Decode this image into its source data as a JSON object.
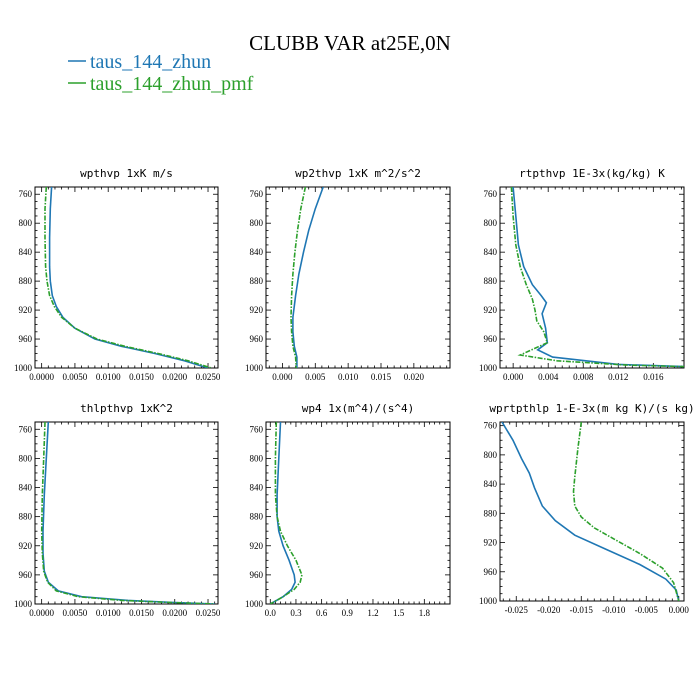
{
  "figure": {
    "title": "CLUBB VAR at25E,0N",
    "legend": [
      {
        "label": "taus_144_zhun",
        "color": "#1f77b4"
      },
      {
        "label": "taus_144_zhun_pmf",
        "color": "#2ca02c"
      }
    ]
  },
  "chart_data": [
    {
      "type": "line",
      "title": "wpthvp  1xK m/s",
      "xlim": [
        -0.001,
        0.0265
      ],
      "ylim": [
        1000,
        750
      ],
      "xticks": [
        0.0,
        0.005,
        0.01,
        0.015,
        0.02,
        0.025
      ],
      "xtick_labels": [
        "0.0000",
        "0.0050",
        "0.0100",
        "0.0150",
        "0.0200",
        "0.0250"
      ],
      "yticks": [
        760,
        800,
        840,
        880,
        920,
        960,
        1000
      ],
      "series": [
        {
          "name": "taus_144_zhun",
          "color": "#1f77b4",
          "dashed": false,
          "x": [
            0.0015,
            0.0013,
            0.0012,
            0.0012,
            0.0013,
            0.0016,
            0.0022,
            0.0032,
            0.005,
            0.008,
            0.012,
            0.017,
            0.0215,
            0.025
          ],
          "y": [
            750,
            780,
            820,
            860,
            880,
            900,
            915,
            930,
            945,
            960,
            970,
            980,
            990,
            1000
          ]
        },
        {
          "name": "taus_144_zhun_pmf",
          "color": "#2ca02c",
          "dashed": true,
          "x": [
            0.0007,
            0.0005,
            0.0005,
            0.0006,
            0.0008,
            0.0012,
            0.0019,
            0.003,
            0.005,
            0.0083,
            0.0125,
            0.0175,
            0.022,
            0.0255
          ],
          "y": [
            750,
            780,
            820,
            860,
            880,
            900,
            915,
            930,
            945,
            960,
            970,
            980,
            990,
            1000
          ]
        }
      ]
    },
    {
      "type": "line",
      "title": "wp2thvp  1xK m^2/s^2",
      "xlim": [
        -0.0025,
        0.0255
      ],
      "ylim": [
        1000,
        750
      ],
      "xticks": [
        0.0,
        0.005,
        0.01,
        0.015,
        0.02
      ],
      "xtick_labels": [
        "0.000",
        "0.005",
        "0.010",
        "0.015",
        "0.020"
      ],
      "yticks": [
        760,
        800,
        840,
        880,
        920,
        960,
        1000
      ],
      "series": [
        {
          "name": "taus_144_zhun",
          "color": "#1f77b4",
          "dashed": false,
          "x": [
            0.0062,
            0.005,
            0.004,
            0.0032,
            0.0025,
            0.002,
            0.0016,
            0.0016,
            0.0018,
            0.0022,
            0.0022
          ],
          "y": [
            750,
            780,
            810,
            840,
            870,
            900,
            930,
            950,
            970,
            985,
            1000
          ]
        },
        {
          "name": "taus_144_zhun_pmf",
          "color": "#2ca02c",
          "dashed": true,
          "x": [
            0.0035,
            0.0028,
            0.0023,
            0.0019,
            0.0016,
            0.0014,
            0.0013,
            0.0014,
            0.0016,
            0.002,
            0.0021
          ],
          "y": [
            750,
            780,
            810,
            840,
            870,
            900,
            930,
            950,
            970,
            985,
            1000
          ]
        }
      ]
    },
    {
      "type": "line",
      "title": "rtpthvp  1E-3x(kg/kg) K",
      "xlim": [
        -0.0015,
        0.0195
      ],
      "ylim": [
        1000,
        750
      ],
      "xticks": [
        0.0,
        0.004,
        0.008,
        0.012,
        0.016
      ],
      "xtick_labels": [
        "0.000",
        "0.004",
        "0.008",
        "0.012",
        "0.016"
      ],
      "yticks": [
        760,
        800,
        840,
        880,
        920,
        960,
        1000
      ],
      "series": [
        {
          "name": "taus_144_zhun",
          "color": "#1f77b4",
          "dashed": false,
          "x": [
            0.0,
            0.0003,
            0.0006,
            0.0012,
            0.0022,
            0.0032,
            0.0038,
            0.0033,
            0.0037,
            0.0039,
            0.0028,
            0.0045,
            0.012,
            0.0195
          ],
          "y": [
            750,
            790,
            830,
            860,
            885,
            900,
            910,
            925,
            945,
            965,
            975,
            985,
            995,
            998
          ]
        },
        {
          "name": "taus_144_zhun_pmf",
          "color": "#2ca02c",
          "dashed": true,
          "x": [
            -0.0002,
            0.0,
            0.0003,
            0.0008,
            0.0015,
            0.0022,
            0.0025,
            0.0027,
            0.0035,
            0.0039,
            0.0008,
            0.005,
            0.013,
            0.0195
          ],
          "y": [
            750,
            790,
            830,
            860,
            885,
            905,
            920,
            935,
            950,
            965,
            982,
            990,
            996,
            998
          ]
        }
      ]
    },
    {
      "type": "line",
      "title": "thlpthvp  1xK^2",
      "xlim": [
        -0.001,
        0.0265
      ],
      "ylim": [
        1000,
        750
      ],
      "xticks": [
        0.0,
        0.005,
        0.01,
        0.015,
        0.02,
        0.025
      ],
      "xtick_labels": [
        "0.0000",
        "0.0050",
        "0.0100",
        "0.0150",
        "0.0200",
        "0.0250"
      ],
      "yticks": [
        760,
        800,
        840,
        880,
        920,
        960,
        1000
      ],
      "series": [
        {
          "name": "taus_144_zhun",
          "color": "#1f77b4",
          "dashed": false,
          "x": [
            0.001,
            0.0007,
            0.0004,
            0.0002,
            0.0002,
            0.0004,
            0.001,
            0.0025,
            0.006,
            0.013,
            0.02,
            0.026
          ],
          "y": [
            750,
            800,
            850,
            900,
            930,
            955,
            970,
            982,
            990,
            995,
            998,
            1000
          ]
        },
        {
          "name": "taus_144_zhun_pmf",
          "color": "#2ca02c",
          "dashed": true,
          "x": [
            0.0005,
            0.0003,
            0.0001,
            0.0,
            0.0001,
            0.0003,
            0.0009,
            0.0022,
            0.0055,
            0.012,
            0.0195,
            0.026
          ],
          "y": [
            750,
            800,
            850,
            900,
            930,
            955,
            970,
            982,
            990,
            995,
            998,
            1000
          ]
        }
      ]
    },
    {
      "type": "line",
      "title": "wp4  1x(m^4)/(s^4)",
      "xlim": [
        -0.05,
        2.1
      ],
      "ylim": [
        1000,
        750
      ],
      "xticks": [
        0.0,
        0.3,
        0.6,
        0.9,
        1.2,
        1.5,
        1.8
      ],
      "xtick_labels": [
        "0.0",
        "0.3",
        "0.6",
        "0.9",
        "1.2",
        "1.5",
        "1.8"
      ],
      "yticks": [
        760,
        800,
        840,
        880,
        920,
        960,
        1000
      ],
      "series": [
        {
          "name": "taus_144_zhun",
          "color": "#1f77b4",
          "dashed": false,
          "x": [
            0.12,
            0.1,
            0.08,
            0.08,
            0.1,
            0.15,
            0.22,
            0.28,
            0.29,
            0.25,
            0.15,
            0.0
          ],
          "y": [
            750,
            800,
            850,
            880,
            900,
            920,
            940,
            960,
            970,
            980,
            990,
            1000
          ]
        },
        {
          "name": "taus_144_zhun_pmf",
          "color": "#2ca02c",
          "dashed": true,
          "x": [
            0.07,
            0.06,
            0.06,
            0.08,
            0.12,
            0.2,
            0.3,
            0.37,
            0.35,
            0.28,
            0.15,
            0.0
          ],
          "y": [
            750,
            800,
            850,
            880,
            900,
            920,
            940,
            960,
            970,
            980,
            990,
            1000
          ]
        }
      ]
    },
    {
      "type": "line",
      "title": "wprtpthlp  1-E-3x(m kg K)/(s kg)",
      "xlim": [
        -0.0275,
        0.0008
      ],
      "ylim": [
        1000,
        755
      ],
      "xticks": [
        -0.025,
        -0.02,
        -0.015,
        -0.01,
        -0.005,
        0.0
      ],
      "xtick_labels": [
        "-0.025",
        "-0.020",
        "-0.015",
        "-0.010",
        "-0.005",
        "0.000"
      ],
      "yticks": [
        760,
        800,
        840,
        880,
        920,
        960,
        1000
      ],
      "series": [
        {
          "name": "taus_144_zhun",
          "color": "#1f77b4",
          "dashed": false,
          "x": [
            -0.0272,
            -0.0255,
            -0.0242,
            -0.023,
            -0.0222,
            -0.021,
            -0.019,
            -0.016,
            -0.011,
            -0.006,
            -0.002,
            -0.0004,
            0.0
          ],
          "y": [
            755,
            780,
            805,
            825,
            845,
            870,
            890,
            910,
            930,
            950,
            970,
            985,
            1000
          ]
        },
        {
          "name": "taus_144_zhun_pmf",
          "color": "#2ca02c",
          "dashed": true,
          "x": [
            -0.015,
            -0.0155,
            -0.016,
            -0.0162,
            -0.016,
            -0.015,
            -0.013,
            -0.01,
            -0.006,
            -0.0025,
            -0.0008,
            0.0
          ],
          "y": [
            755,
            790,
            830,
            850,
            870,
            885,
            900,
            915,
            935,
            955,
            975,
            1000
          ]
        }
      ]
    }
  ]
}
